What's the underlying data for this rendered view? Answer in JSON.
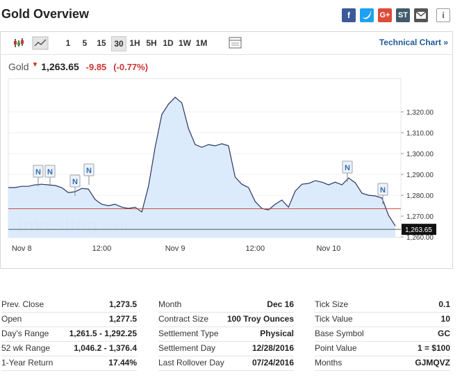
{
  "header": {
    "title": "Gold Overview",
    "share": [
      "f",
      "G+",
      "ST",
      "i"
    ]
  },
  "toolbar": {
    "intervals": [
      "1",
      "5",
      "15",
      "30",
      "1H",
      "5H",
      "1D",
      "1W",
      "1M"
    ],
    "selected": "30",
    "technical_link": "Technical Chart »"
  },
  "quote": {
    "name": "Gold",
    "last": "1,263.65",
    "change": "-9.85",
    "change_pct": "(-0.77%)"
  },
  "chart": {
    "type": "line",
    "watermark": {
      "brand": "Investing",
      "suffix": ".com"
    },
    "news_label": "N",
    "categories": [
      null,
      null,
      "Nov 8",
      null,
      null,
      null,
      null,
      null,
      null,
      null,
      null,
      null,
      null,
      null,
      "12:00",
      null,
      null,
      null,
      null,
      null,
      null,
      null,
      null,
      null,
      null,
      "Nov 9",
      null,
      null,
      null,
      null,
      null,
      null,
      null,
      null,
      null,
      null,
      null,
      "12:00",
      null,
      null,
      null,
      null,
      null,
      null,
      null,
      null,
      null,
      null,
      "Nov 10",
      null,
      null,
      null,
      null,
      null,
      null,
      null,
      null,
      null,
      null
    ],
    "values": [
      1283.7,
      1283.7,
      1284.3,
      1284.3,
      1285,
      1285.3,
      1285,
      1284.7,
      1283.7,
      1281.3,
      1281.7,
      1283.3,
      1283,
      1278,
      1275.7,
      1275,
      1275.7,
      1274.3,
      1273.7,
      1274.3,
      1272,
      1284.3,
      1303,
      1318.7,
      1323.7,
      1327,
      1324.3,
      1312,
      1304.3,
      1303,
      1304.3,
      1303.7,
      1304.7,
      1303.7,
      1288.7,
      1285.3,
      1283.7,
      1277,
      1273.7,
      1273,
      1275.7,
      1277.7,
      1274.3,
      1282,
      1285.3,
      1285.7,
      1287,
      1286.3,
      1285,
      1286.3,
      1285,
      1288.3,
      1286,
      1281,
      1280,
      1279.7,
      1278.7,
      1270.3,
      1265.3
    ],
    "color": "#2a3565",
    "fill": "#d8e9fb",
    "ylim": [
      1259.7,
      1336
    ],
    "yticks": [
      {
        "value": 1260,
        "label": "1,260.00"
      },
      {
        "value": 1270,
        "label": "1,270.00"
      },
      {
        "value": 1280,
        "label": "1,280.00"
      },
      {
        "value": 1290,
        "label": "1,290.00"
      },
      {
        "value": 1300,
        "label": "1,300.00"
      },
      {
        "value": 1310,
        "label": "1,310.00"
      },
      {
        "value": 1320,
        "label": "1,320.00"
      }
    ],
    "reference_line": {
      "value": 1273.5,
      "color": "#c0392b"
    },
    "price_line": {
      "value": 1263.65,
      "label": "1,263.65"
    }
  },
  "stats": [
    [
      [
        "Prev. Close",
        "1,273.5"
      ],
      [
        "Open",
        "1,277.5"
      ],
      [
        "Day's Range",
        "1,261.5 - 1,292.25"
      ],
      [
        "52 wk Range",
        "1,046.2 - 1,376.4"
      ],
      [
        "1-Year Return",
        "17.44%"
      ]
    ],
    [
      [
        "Month",
        "Dec 16"
      ],
      [
        "Contract Size",
        "100 Troy Ounces"
      ],
      [
        "Settlement Type",
        "Physical"
      ],
      [
        "Settlement Day",
        "12/28/2016"
      ],
      [
        "Last Rollover Day",
        "07/24/2016"
      ]
    ],
    [
      [
        "Tick Size",
        "0.1"
      ],
      [
        "Tick Value",
        "10"
      ],
      [
        "Base Symbol",
        "GC"
      ],
      [
        "Point Value",
        "1 = $100"
      ],
      [
        "Months",
        "GJMQVZ"
      ]
    ]
  ]
}
